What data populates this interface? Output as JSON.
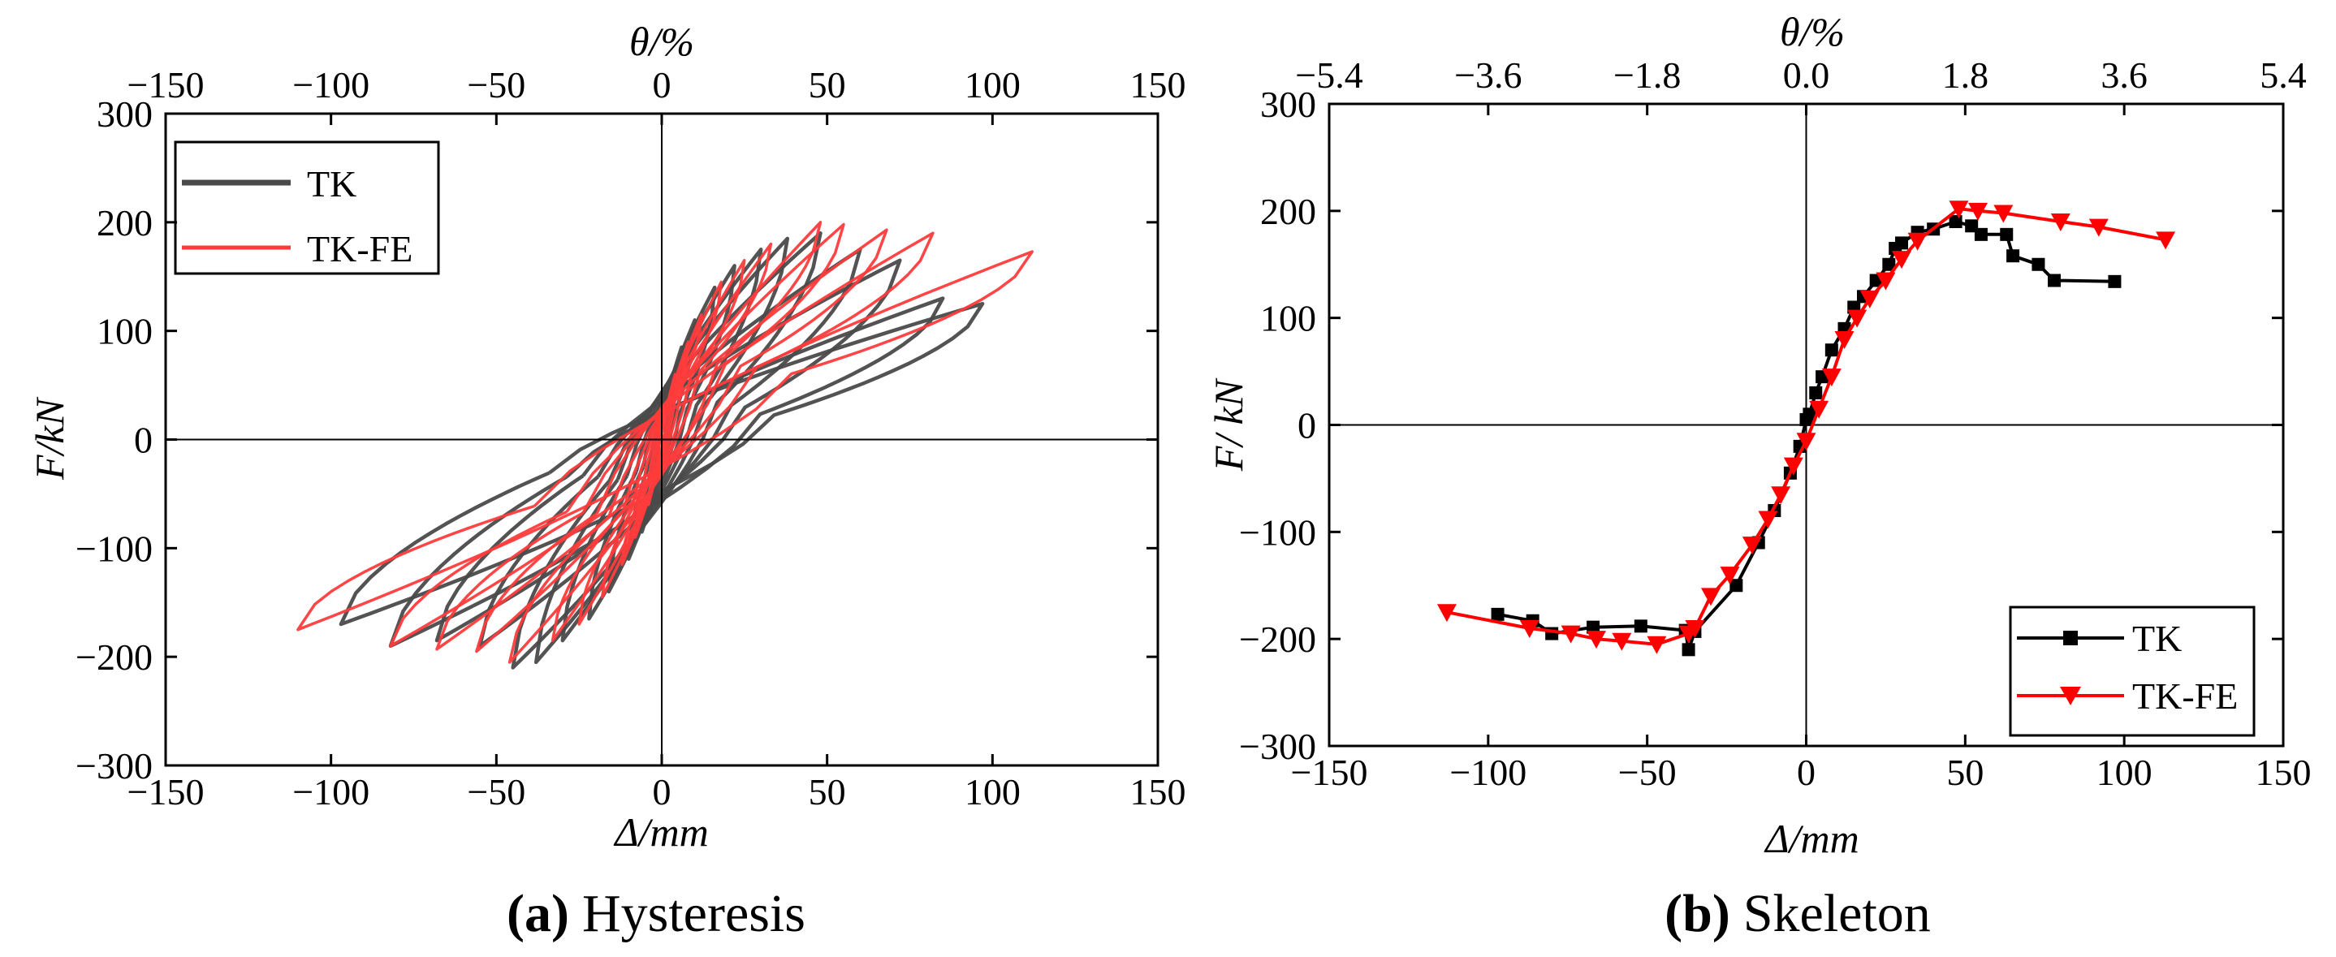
{
  "chart_data": [
    {
      "type": "line",
      "panel": "a",
      "caption_letter": "(a)",
      "caption_text": "Hysteresis",
      "xlabel": "Δ/mm",
      "ylabel": "F/kN",
      "top_xlabel": "θ/%",
      "xlim": [
        -150,
        150
      ],
      "ylim": [
        -300,
        300
      ],
      "xticks": [
        "−150",
        "−100",
        "−50",
        "0",
        "50",
        "100",
        "150"
      ],
      "yticks": [
        "300",
        "200",
        "100",
        "0",
        "−100",
        "−200",
        "−300"
      ],
      "top_ticks": [
        "−150",
        "−100",
        "−50",
        "0",
        "50",
        "100",
        "150"
      ],
      "legend_position": "top-left",
      "series": [
        {
          "name": "TK",
          "color": "#4a4a4a",
          "loops": [
            {
              "d": 3,
              "f": 55
            },
            {
              "d": 6,
              "f": 85
            },
            {
              "d": 10,
              "f": 110
            },
            {
              "d": 16,
              "f": 140
            },
            {
              "d": 22,
              "f": 160
            },
            {
              "d": 30,
              "f": 175
            },
            {
              "d": 38,
              "f": 185
            },
            {
              "d": 48,
              "f": 190
            },
            {
              "d": 60,
              "f": 175
            },
            {
              "d": 72,
              "f": 165
            },
            {
              "d": 85,
              "f": 130
            },
            {
              "d": 97,
              "f": 125
            }
          ],
          "neg_loops": [
            {
              "d": -3,
              "f": -55
            },
            {
              "d": -6,
              "f": -85
            },
            {
              "d": -10,
              "f": -110
            },
            {
              "d": -16,
              "f": -140
            },
            {
              "d": -22,
              "f": -165
            },
            {
              "d": -30,
              "f": -185
            },
            {
              "d": -38,
              "f": -205
            },
            {
              "d": -45,
              "f": -210
            },
            {
              "d": -55,
              "f": -190
            },
            {
              "d": -68,
              "f": -185
            },
            {
              "d": -82,
              "f": -190
            },
            {
              "d": -97,
              "f": -170
            }
          ]
        },
        {
          "name": "TK-FE",
          "color": "#ff3b3b",
          "loops": [
            {
              "d": 4,
              "f": 60
            },
            {
              "d": 8,
              "f": 90
            },
            {
              "d": 12,
              "f": 115
            },
            {
              "d": 18,
              "f": 145
            },
            {
              "d": 25,
              "f": 165
            },
            {
              "d": 33,
              "f": 180
            },
            {
              "d": 48,
              "f": 200
            },
            {
              "d": 55,
              "f": 198
            },
            {
              "d": 68,
              "f": 193
            },
            {
              "d": 82,
              "f": 190
            },
            {
              "d": 112,
              "f": 173
            }
          ],
          "neg_loops": [
            {
              "d": -4,
              "f": -60
            },
            {
              "d": -8,
              "f": -90
            },
            {
              "d": -12,
              "f": -115
            },
            {
              "d": -18,
              "f": -145
            },
            {
              "d": -25,
              "f": -170
            },
            {
              "d": -33,
              "f": -185
            },
            {
              "d": -46,
              "f": -205
            },
            {
              "d": -56,
              "f": -195
            },
            {
              "d": -68,
              "f": -193
            },
            {
              "d": -82,
              "f": -190
            },
            {
              "d": -110,
              "f": -175
            }
          ]
        }
      ]
    },
    {
      "type": "line",
      "panel": "b",
      "caption_letter": "(b)",
      "caption_text": "Skeleton",
      "xlabel": "Δ/mm",
      "ylabel": "F/ kN",
      "top_xlabel": "θ/%",
      "xlim": [
        -150,
        150
      ],
      "ylim": [
        -300,
        300
      ],
      "xticks": [
        "−150",
        "−100",
        "−50",
        "0",
        "50",
        "100",
        "150"
      ],
      "yticks": [
        "300",
        "200",
        "100",
        "0",
        "−100",
        "−200",
        "−300"
      ],
      "top_ticks": [
        "−5.4",
        "−3.6",
        "−1.8",
        "0.0",
        "1.8",
        "3.6",
        "5.4"
      ],
      "legend_position": "bottom-right",
      "series": [
        {
          "name": "TK",
          "color": "#000000",
          "marker": "square",
          "points": [
            [
              -97,
              -177
            ],
            [
              -86,
              -183
            ],
            [
              -80,
              -195
            ],
            [
              -67,
              -189
            ],
            [
              -52,
              -188
            ],
            [
              -38,
              -192
            ],
            [
              -37,
              -210
            ],
            [
              -35,
              -193
            ],
            [
              -22,
              -150
            ],
            [
              -15,
              -110
            ],
            [
              -10,
              -80
            ],
            [
              -5,
              -45
            ],
            [
              -2,
              -20
            ],
            [
              0,
              5
            ],
            [
              1,
              10
            ],
            [
              3,
              30
            ],
            [
              5,
              45
            ],
            [
              8,
              70
            ],
            [
              12,
              90
            ],
            [
              15,
              110
            ],
            [
              18,
              120
            ],
            [
              22,
              135
            ],
            [
              26,
              150
            ],
            [
              28,
              165
            ],
            [
              30,
              170
            ],
            [
              35,
              180
            ],
            [
              40,
              183
            ],
            [
              47,
              190
            ],
            [
              52,
              186
            ],
            [
              55,
              178
            ],
            [
              63,
              178
            ],
            [
              65,
              158
            ],
            [
              73,
              150
            ],
            [
              78,
              135
            ],
            [
              97,
              134
            ]
          ]
        },
        {
          "name": "TK-FE",
          "color": "#ff0000",
          "marker": "triangle-down",
          "points": [
            [
              -113,
              -175
            ],
            [
              -87,
              -190
            ],
            [
              -74,
              -195
            ],
            [
              -66,
              -200
            ],
            [
              -58,
              -202
            ],
            [
              -47,
              -205
            ],
            [
              -37,
              -195
            ],
            [
              -35,
              -190
            ],
            [
              -30,
              -160
            ],
            [
              -24,
              -140
            ],
            [
              -17,
              -112
            ],
            [
              -12,
              -88
            ],
            [
              -8,
              -65
            ],
            [
              -4,
              -38
            ],
            [
              0,
              -15
            ],
            [
              4,
              15
            ],
            [
              8,
              45
            ],
            [
              12,
              80
            ],
            [
              16,
              100
            ],
            [
              20,
              118
            ],
            [
              25,
              135
            ],
            [
              30,
              155
            ],
            [
              35,
              172
            ],
            [
              48,
              202
            ],
            [
              54,
              200
            ],
            [
              62,
              198
            ],
            [
              80,
              190
            ],
            [
              92,
              185
            ],
            [
              113,
              173
            ]
          ]
        }
      ]
    }
  ]
}
